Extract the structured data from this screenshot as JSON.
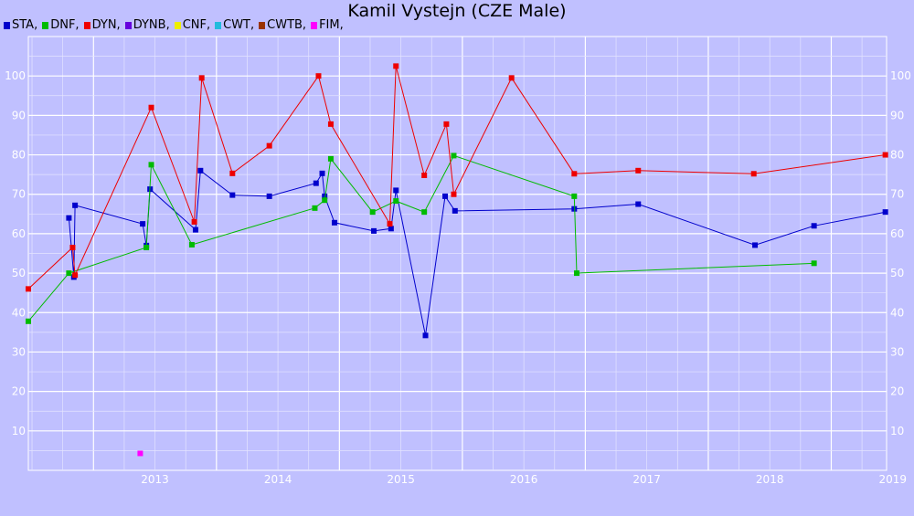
{
  "chart_data": {
    "type": "line",
    "title": "Kamil Vystejn (CZE Male)",
    "xlabel": "",
    "ylabel": "",
    "grid": true,
    "legend_position": "top-left",
    "xlim": [
      2012.47,
      2019.45
    ],
    "ylim": [
      0,
      110
    ],
    "x_ticks": [
      2013,
      2014,
      2015,
      2016,
      2017,
      2018,
      2019
    ],
    "y_ticks": [
      10,
      20,
      30,
      40,
      50,
      60,
      70,
      80,
      90,
      100
    ],
    "legend": [
      {
        "label": "STA,",
        "color": "#0000cc"
      },
      {
        "label": "DNF,",
        "color": "#00bb00"
      },
      {
        "label": "DYN,",
        "color": "#ee0000"
      },
      {
        "label": "DYNB,",
        "color": "#6600dd"
      },
      {
        "label": "CNF,",
        "color": "#eeee00"
      },
      {
        "label": "CWT,",
        "color": "#22bbdd"
      },
      {
        "label": "CWTB,",
        "color": "#993300"
      },
      {
        "label": "FIM,",
        "color": "#ff00ff"
      }
    ],
    "series": [
      {
        "name": "STA",
        "color": "#0000cc",
        "line": true,
        "points": [
          [
            2012.8,
            64
          ],
          [
            2012.84,
            49
          ],
          [
            2012.85,
            67.2
          ],
          [
            2013.4,
            62.5
          ],
          [
            2013.43,
            57
          ],
          [
            2013.46,
            71.3
          ],
          [
            2013.83,
            61
          ],
          [
            2013.87,
            76
          ],
          [
            2014.13,
            69.8
          ],
          [
            2014.43,
            69.5
          ],
          [
            2014.81,
            72.8
          ],
          [
            2014.86,
            75.3
          ],
          [
            2014.88,
            69.5
          ],
          [
            2014.96,
            62.8
          ],
          [
            2015.28,
            60.7
          ],
          [
            2015.42,
            61.3
          ],
          [
            2015.46,
            71
          ],
          [
            2015.7,
            34.2
          ],
          [
            2015.86,
            69.5
          ],
          [
            2015.94,
            65.8
          ],
          [
            2016.91,
            66.3
          ],
          [
            2017.43,
            67.5
          ],
          [
            2018.38,
            57.1
          ],
          [
            2018.86,
            62
          ],
          [
            2019.44,
            65.5
          ]
        ]
      },
      {
        "name": "DNF",
        "color": "#00bb00",
        "line": true,
        "points": [
          [
            2012.47,
            37.8
          ],
          [
            2012.8,
            50
          ],
          [
            2013.43,
            56.5
          ],
          [
            2013.47,
            77.5
          ],
          [
            2013.8,
            57.2
          ],
          [
            2014.8,
            66.5
          ],
          [
            2014.88,
            68.5
          ],
          [
            2014.93,
            79
          ],
          [
            2015.27,
            65.5
          ],
          [
            2015.46,
            68.3
          ],
          [
            2015.69,
            65.5
          ],
          [
            2015.93,
            79.8
          ],
          [
            2016.91,
            69.5
          ],
          [
            2016.93,
            50
          ],
          [
            2018.86,
            52.5
          ]
        ]
      },
      {
        "name": "DYN",
        "color": "#ee0000",
        "line": true,
        "points": [
          [
            2012.47,
            46
          ],
          [
            2012.83,
            56.5
          ],
          [
            2012.85,
            49.5
          ],
          [
            2013.47,
            92
          ],
          [
            2013.82,
            63
          ],
          [
            2013.88,
            99.5
          ],
          [
            2014.13,
            75.3
          ],
          [
            2014.43,
            82.3
          ],
          [
            2014.83,
            100
          ],
          [
            2014.93,
            87.8
          ],
          [
            2015.41,
            62.5
          ],
          [
            2015.46,
            102.5
          ],
          [
            2015.69,
            74.8
          ],
          [
            2015.87,
            87.8
          ],
          [
            2015.93,
            70
          ],
          [
            2016.4,
            99.5
          ],
          [
            2016.91,
            75.2
          ],
          [
            2017.43,
            76
          ],
          [
            2018.37,
            75.2
          ],
          [
            2019.44,
            80
          ]
        ]
      },
      {
        "name": "FIM",
        "color": "#ff00ff",
        "line": false,
        "points": [
          [
            2013.38,
            4.3
          ]
        ]
      }
    ]
  }
}
